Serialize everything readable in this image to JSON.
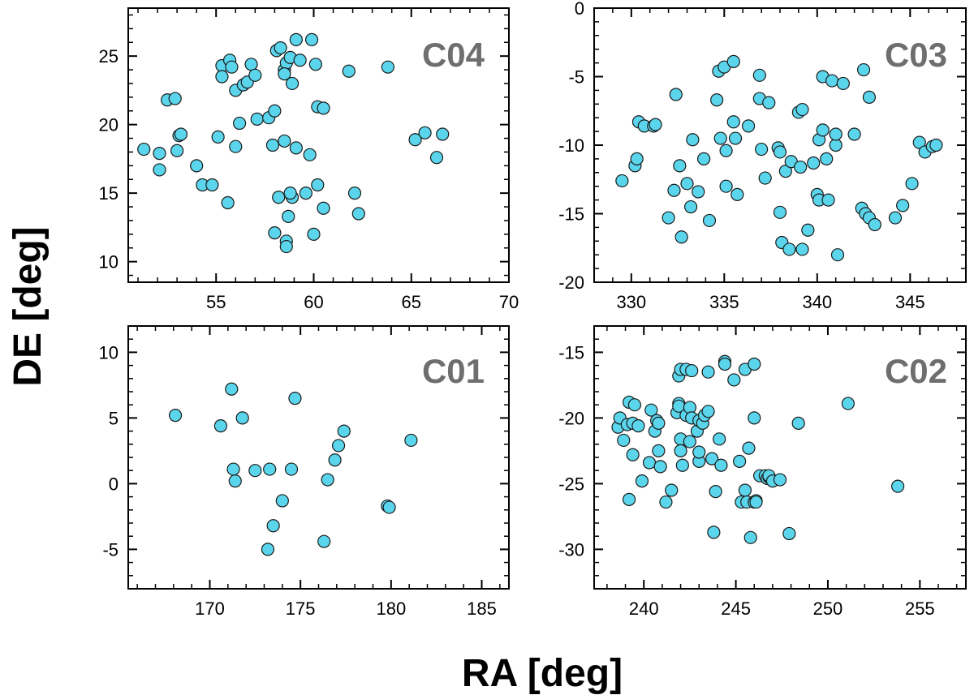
{
  "figure": {
    "xlabel": "RA [deg]",
    "ylabel": "DE [deg]",
    "marker_fill": "#5bd5ec",
    "marker_edge": "#1a1a1a",
    "panel_label_color": "#6e6e6e"
  },
  "chart_data": [
    {
      "type": "scatter",
      "label": "C04",
      "xlim": [
        50.5,
        70
      ],
      "ylim": [
        8.5,
        28.5
      ],
      "xticks": [
        55,
        60,
        65,
        70
      ],
      "yticks": [
        10,
        15,
        20,
        25
      ],
      "points": [
        [
          51.3,
          18.2
        ],
        [
          52.1,
          17.9
        ],
        [
          52.1,
          16.7
        ],
        [
          52.5,
          21.8
        ],
        [
          52.9,
          21.9
        ],
        [
          53.1,
          19.2
        ],
        [
          53.2,
          19.3
        ],
        [
          53.0,
          18.1
        ],
        [
          54.0,
          17.0
        ],
        [
          54.3,
          15.6
        ],
        [
          54.8,
          15.6
        ],
        [
          55.1,
          19.1
        ],
        [
          55.3,
          24.3
        ],
        [
          55.3,
          23.5
        ],
        [
          55.7,
          24.7
        ],
        [
          55.8,
          24.2
        ],
        [
          55.6,
          14.3
        ],
        [
          56.0,
          22.5
        ],
        [
          56.0,
          18.4
        ],
        [
          56.2,
          20.1
        ],
        [
          56.4,
          22.9
        ],
        [
          56.6,
          23.1
        ],
        [
          56.8,
          24.4
        ],
        [
          57.0,
          23.6
        ],
        [
          57.1,
          20.4
        ],
        [
          57.7,
          20.5
        ],
        [
          57.9,
          18.5
        ],
        [
          58.0,
          21.0
        ],
        [
          58.0,
          12.1
        ],
        [
          58.1,
          25.4
        ],
        [
          58.3,
          25.6
        ],
        [
          58.2,
          14.7
        ],
        [
          58.5,
          18.8
        ],
        [
          58.6,
          11.5
        ],
        [
          58.6,
          11.1
        ],
        [
          58.7,
          13.3
        ],
        [
          58.5,
          24.0
        ],
        [
          58.6,
          24.5
        ],
        [
          58.5,
          23.7
        ],
        [
          58.8,
          24.9
        ],
        [
          58.9,
          14.7
        ],
        [
          58.8,
          15.0
        ],
        [
          58.9,
          23.0
        ],
        [
          59.1,
          18.3
        ],
        [
          59.1,
          26.2
        ],
        [
          59.3,
          24.7
        ],
        [
          59.6,
          15.0
        ],
        [
          59.8,
          17.8
        ],
        [
          59.9,
          26.2
        ],
        [
          60.0,
          12.0
        ],
        [
          60.1,
          24.4
        ],
        [
          60.2,
          21.3
        ],
        [
          60.2,
          15.6
        ],
        [
          60.5,
          21.2
        ],
        [
          60.5,
          13.9
        ],
        [
          61.8,
          23.9
        ],
        [
          62.1,
          15.0
        ],
        [
          62.3,
          13.5
        ],
        [
          63.8,
          24.2
        ],
        [
          65.2,
          18.9
        ],
        [
          65.7,
          19.4
        ],
        [
          66.3,
          17.6
        ],
        [
          66.6,
          19.3
        ]
      ]
    },
    {
      "type": "scatter",
      "label": "C03",
      "xlim": [
        328,
        348
      ],
      "ylim": [
        -20,
        0
      ],
      "xticks": [
        330,
        335,
        340,
        345
      ],
      "yticks": [
        0,
        -5,
        -10,
        -15,
        -20
      ],
      "points": [
        [
          329.5,
          -12.6
        ],
        [
          330.2,
          -11.5
        ],
        [
          330.3,
          -11.0
        ],
        [
          330.4,
          -8.3
        ],
        [
          330.7,
          -8.6
        ],
        [
          331.2,
          -8.6
        ],
        [
          331.3,
          -8.5
        ],
        [
          332.0,
          -15.3
        ],
        [
          332.3,
          -13.3
        ],
        [
          332.4,
          -6.3
        ],
        [
          332.6,
          -11.5
        ],
        [
          332.7,
          -16.7
        ],
        [
          333.0,
          -12.8
        ],
        [
          333.2,
          -14.5
        ],
        [
          333.3,
          -9.6
        ],
        [
          333.6,
          -13.4
        ],
        [
          333.9,
          -11.0
        ],
        [
          334.2,
          -15.5
        ],
        [
          334.6,
          -6.7
        ],
        [
          334.7,
          -4.6
        ],
        [
          334.8,
          -9.5
        ],
        [
          335.0,
          -4.3
        ],
        [
          335.1,
          -10.4
        ],
        [
          335.1,
          -13.0
        ],
        [
          335.5,
          -3.9
        ],
        [
          335.6,
          -9.5
        ],
        [
          335.5,
          -8.3
        ],
        [
          335.7,
          -13.6
        ],
        [
          336.3,
          -8.6
        ],
        [
          336.9,
          -4.9
        ],
        [
          336.9,
          -6.6
        ],
        [
          337.0,
          -10.3
        ],
        [
          337.2,
          -12.4
        ],
        [
          337.4,
          -6.9
        ],
        [
          337.9,
          -10.2
        ],
        [
          338.0,
          -10.5
        ],
        [
          338.0,
          -14.9
        ],
        [
          338.1,
          -17.1
        ],
        [
          338.3,
          -11.9
        ],
        [
          338.5,
          -17.6
        ],
        [
          338.6,
          -11.2
        ],
        [
          339.0,
          -7.6
        ],
        [
          339.1,
          -11.6
        ],
        [
          339.2,
          -7.4
        ],
        [
          339.2,
          -17.6
        ],
        [
          339.5,
          -16.2
        ],
        [
          339.8,
          -11.3
        ],
        [
          340.0,
          -13.6
        ],
        [
          340.1,
          -14.0
        ],
        [
          340.1,
          -9.6
        ],
        [
          340.3,
          -8.9
        ],
        [
          340.3,
          -5.0
        ],
        [
          340.5,
          -11.0
        ],
        [
          340.6,
          -14.0
        ],
        [
          340.8,
          -5.3
        ],
        [
          341.0,
          -10.0
        ],
        [
          341.0,
          -9.2
        ],
        [
          341.1,
          -18.0
        ],
        [
          341.4,
          -5.5
        ],
        [
          342.0,
          -9.2
        ],
        [
          342.5,
          -4.5
        ],
        [
          342.4,
          -14.6
        ],
        [
          342.6,
          -15.0
        ],
        [
          342.8,
          -15.3
        ],
        [
          342.8,
          -6.5
        ],
        [
          343.1,
          -15.8
        ],
        [
          344.2,
          -15.3
        ],
        [
          344.6,
          -14.4
        ],
        [
          345.1,
          -12.8
        ],
        [
          345.5,
          -9.8
        ],
        [
          345.8,
          -10.5
        ],
        [
          346.2,
          -10.1
        ],
        [
          346.4,
          -10.0
        ]
      ]
    },
    {
      "type": "scatter",
      "label": "C01",
      "xlim": [
        165.5,
        186.5
      ],
      "ylim": [
        -8,
        12
      ],
      "xticks": [
        170,
        175,
        180,
        185
      ],
      "yticks": [
        10,
        5,
        0,
        -5
      ],
      "points": [
        [
          168.1,
          5.2
        ],
        [
          170.6,
          4.4
        ],
        [
          171.2,
          7.2
        ],
        [
          171.3,
          1.1
        ],
        [
          171.4,
          0.2
        ],
        [
          171.8,
          5.0
        ],
        [
          172.5,
          1.0
        ],
        [
          173.3,
          1.1
        ],
        [
          173.2,
          -5.0
        ],
        [
          173.5,
          -3.2
        ],
        [
          174.0,
          -1.3
        ],
        [
          174.5,
          1.1
        ],
        [
          174.7,
          6.5
        ],
        [
          176.3,
          -4.4
        ],
        [
          176.5,
          0.3
        ],
        [
          176.9,
          1.8
        ],
        [
          177.1,
          2.9
        ],
        [
          177.4,
          4.0
        ],
        [
          179.8,
          -1.7
        ],
        [
          179.9,
          -1.8
        ],
        [
          181.1,
          3.3
        ]
      ]
    },
    {
      "type": "scatter",
      "label": "C02",
      "xlim": [
        237.3,
        257.5
      ],
      "ylim": [
        -33,
        -13
      ],
      "xticks": [
        240,
        245,
        250,
        255
      ],
      "yticks": [
        -15,
        -20,
        -25,
        -30
      ],
      "points": [
        [
          238.6,
          -20.7
        ],
        [
          238.7,
          -20.0
        ],
        [
          238.9,
          -21.7
        ],
        [
          239.2,
          -18.8
        ],
        [
          239.1,
          -20.5
        ],
        [
          239.4,
          -20.4
        ],
        [
          239.2,
          -26.2
        ],
        [
          239.4,
          -22.8
        ],
        [
          239.5,
          -19.0
        ],
        [
          239.7,
          -20.6
        ],
        [
          239.9,
          -24.8
        ],
        [
          240.3,
          -23.4
        ],
        [
          240.4,
          -19.4
        ],
        [
          240.6,
          -21.0
        ],
        [
          240.7,
          -20.2
        ],
        [
          240.8,
          -20.4
        ],
        [
          240.8,
          -22.5
        ],
        [
          240.9,
          -23.7
        ],
        [
          241.2,
          -26.4
        ],
        [
          241.5,
          -25.5
        ],
        [
          241.8,
          -19.6
        ],
        [
          241.9,
          -18.9
        ],
        [
          241.9,
          -19.1
        ],
        [
          241.9,
          -16.8
        ],
        [
          242.0,
          -16.3
        ],
        [
          242.0,
          -21.6
        ],
        [
          242.0,
          -22.5
        ],
        [
          242.1,
          -23.6
        ],
        [
          242.3,
          -16.3
        ],
        [
          242.3,
          -19.8
        ],
        [
          242.5,
          -19.2
        ],
        [
          242.5,
          -21.8
        ],
        [
          242.6,
          -20.0
        ],
        [
          242.6,
          -16.4
        ],
        [
          242.9,
          -21.0
        ],
        [
          243.0,
          -23.3
        ],
        [
          243.0,
          -22.6
        ],
        [
          243.0,
          -20.2
        ],
        [
          243.2,
          -20.4
        ],
        [
          243.3,
          -19.8
        ],
        [
          243.5,
          -19.5
        ],
        [
          243.5,
          -16.5
        ],
        [
          243.7,
          -23.1
        ],
        [
          243.8,
          -28.7
        ],
        [
          243.9,
          -25.6
        ],
        [
          244.2,
          -23.6
        ],
        [
          244.1,
          -21.6
        ],
        [
          244.4,
          -15.7
        ],
        [
          244.4,
          -15.9
        ],
        [
          244.9,
          -17.1
        ],
        [
          245.2,
          -23.3
        ],
        [
          245.3,
          -26.4
        ],
        [
          245.5,
          -16.3
        ],
        [
          245.5,
          -25.5
        ],
        [
          245.6,
          -26.4
        ],
        [
          245.7,
          -22.3
        ],
        [
          245.8,
          -29.1
        ],
        [
          246.0,
          -26.4
        ],
        [
          246.0,
          -15.9
        ],
        [
          246.0,
          -20.0
        ],
        [
          246.1,
          -26.3
        ],
        [
          246.1,
          -26.4
        ],
        [
          246.3,
          -24.4
        ],
        [
          246.6,
          -24.4
        ],
        [
          246.7,
          -24.6
        ],
        [
          246.8,
          -24.5
        ],
        [
          246.8,
          -24.4
        ],
        [
          247.0,
          -24.8
        ],
        [
          247.4,
          -24.7
        ],
        [
          247.9,
          -28.8
        ],
        [
          248.4,
          -20.4
        ],
        [
          251.1,
          -18.9
        ],
        [
          253.8,
          -25.2
        ]
      ]
    }
  ]
}
